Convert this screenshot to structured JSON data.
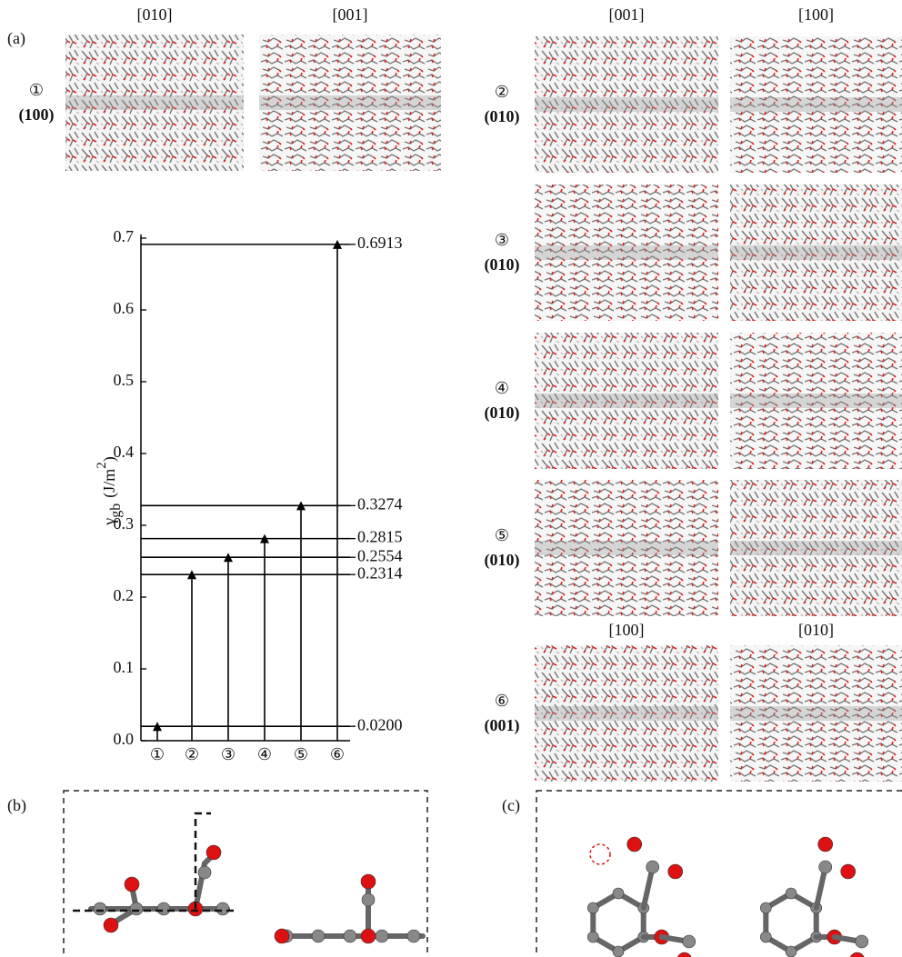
{
  "panel_labels": {
    "a": "(a)",
    "b": "(b)",
    "c": "(c)"
  },
  "top_left": {
    "directions": [
      "[010]",
      "[001]"
    ],
    "rows": [
      {
        "marker": "①",
        "plane": "(100)"
      }
    ]
  },
  "right": {
    "directions": [
      "[001]",
      "[100]"
    ],
    "rows": [
      {
        "marker": "②",
        "plane": "(010)"
      },
      {
        "marker": "③",
        "plane": "(010)"
      },
      {
        "marker": "④",
        "plane": "(010)"
      },
      {
        "marker": "⑤",
        "plane": "(010)"
      }
    ]
  },
  "bottom_right": {
    "directions": [
      "[100]",
      "[010]"
    ],
    "rows": [
      {
        "marker": "⑥",
        "plane": "(001)"
      }
    ]
  },
  "chart_data": {
    "type": "stem",
    "y_label": {
      "symbol": "γ",
      "subscript": "gb",
      "unit": "(J/m",
      "superscript": "2",
      "close": ")"
    },
    "categories": [
      "①",
      "②",
      "③",
      "④",
      "⑤",
      "⑥"
    ],
    "values": [
      0.02,
      0.2314,
      0.2554,
      0.2815,
      0.3274,
      0.6913
    ],
    "value_labels": [
      "0.0200",
      "0.2314",
      "0.2554",
      "0.2815",
      "0.3274",
      "0.6913"
    ],
    "color": "#000000",
    "ylim": [
      0,
      0.7
    ],
    "yticks": [
      {
        "value": 0,
        "label": "0.0"
      },
      0.1,
      0.2,
      0.3,
      0.4,
      0.5,
      0.6,
      0.7
    ]
  }
}
